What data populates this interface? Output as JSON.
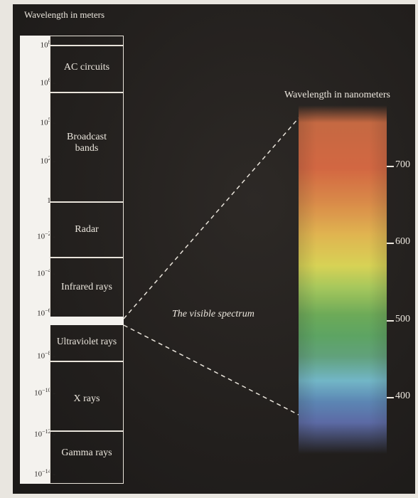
{
  "left_axis": {
    "title": "Wavelength in meters",
    "ticks": [
      {
        "base": "10",
        "exp": "8"
      },
      {
        "base": "10",
        "exp": "6"
      },
      {
        "base": "10",
        "exp": "5"
      },
      {
        "base": "10",
        "exp": "2"
      },
      {
        "base": "1",
        "exp": ""
      },
      {
        "base": "10",
        "exp": "−2"
      },
      {
        "base": "10",
        "exp": "−4"
      },
      {
        "base": "10",
        "exp": "−6"
      },
      {
        "base": "10",
        "exp": "−8"
      },
      {
        "base": "10",
        "exp": "−10"
      },
      {
        "base": "10",
        "exp": "−12"
      },
      {
        "base": "10",
        "exp": "−14"
      }
    ]
  },
  "bands": [
    {
      "label": "AC circuits"
    },
    {
      "label": "Broadcast\nbands"
    },
    {
      "label": "Radar"
    },
    {
      "label": "Infrared rays"
    },
    {
      "label": "Ultraviolet rays"
    },
    {
      "label": "X rays"
    },
    {
      "label": "Gamma rays"
    }
  ],
  "visible": {
    "caption": "The visible spectrum"
  },
  "right_axis": {
    "title": "Wavelength in nanometers",
    "ticks": [
      "700",
      "600",
      "500",
      "400"
    ]
  },
  "colors": {
    "background": "#221f1d",
    "text": "#ece7de",
    "strip": "#f4f2ee"
  }
}
